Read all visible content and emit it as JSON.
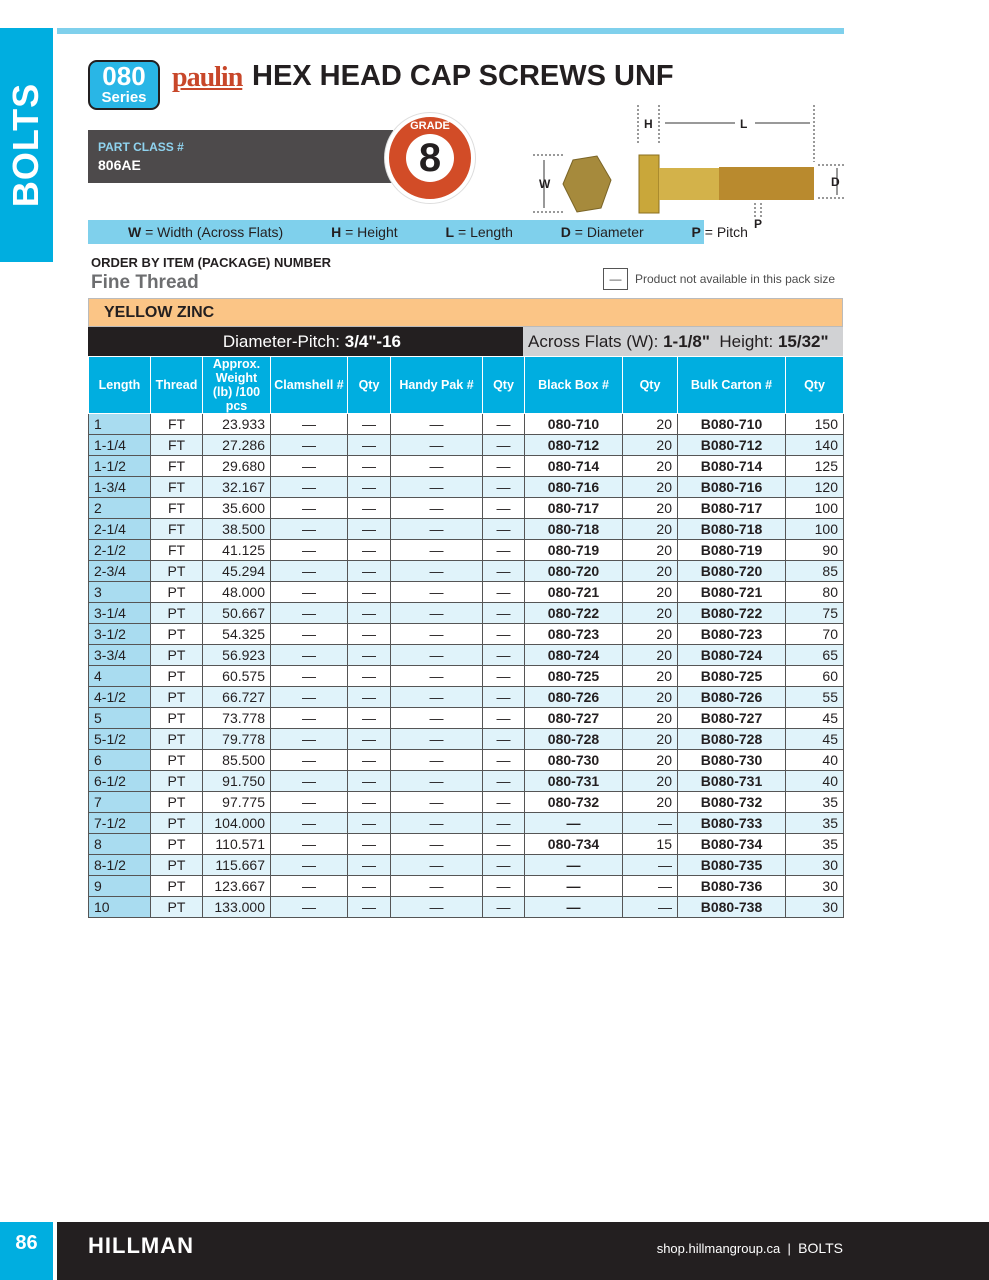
{
  "side_tab": "BOLTS",
  "header": {
    "series_number": "080",
    "series_label": "Series",
    "brand": "paulin",
    "title": "HEX HEAD CAP SCREWS UNF",
    "part_class_label": "PART CLASS #",
    "part_class": "806AE",
    "grade_label": "GRADE",
    "grade": "8"
  },
  "diagram": {
    "h": "H",
    "l": "L",
    "w": "W",
    "d": "D",
    "p": "P"
  },
  "legend": [
    {
      "k": "W",
      "v": "= Width (Across Flats)"
    },
    {
      "k": "H",
      "v": "= Height"
    },
    {
      "k": "L",
      "v": "= Length"
    },
    {
      "k": "D",
      "v": "= Diameter"
    },
    {
      "k": "P",
      "v": "= Pitch"
    }
  ],
  "order_by": "ORDER BY ITEM (PACKAGE) NUMBER",
  "thread_type": "Fine Thread",
  "not_available": {
    "symbol": "—",
    "text": "Product not available in this pack size"
  },
  "finish": "YELLOW ZINC",
  "spec": {
    "dp_label": "Diameter-Pitch:",
    "dp_value": "3/4\"-16",
    "af_label": "Across Flats (W):",
    "af_value": "1-1/8\"",
    "h_label": "Height:",
    "h_value": "15/32\""
  },
  "columns": [
    "Length",
    "Thread",
    "Approx. Weight (lb) /100 pcs",
    "Clamshell #",
    "Qty",
    "Handy Pak #",
    "Qty",
    "Black Box #",
    "Qty",
    "Bulk Carton #",
    "Qty"
  ],
  "rows": [
    [
      "1",
      "FT",
      "23.933",
      "—",
      "—",
      "—",
      "—",
      "080-710",
      "20",
      "B080-710",
      "150"
    ],
    [
      "1-1/4",
      "FT",
      "27.286",
      "—",
      "—",
      "—",
      "—",
      "080-712",
      "20",
      "B080-712",
      "140"
    ],
    [
      "1-1/2",
      "FT",
      "29.680",
      "—",
      "—",
      "—",
      "—",
      "080-714",
      "20",
      "B080-714",
      "125"
    ],
    [
      "1-3/4",
      "FT",
      "32.167",
      "—",
      "—",
      "—",
      "—",
      "080-716",
      "20",
      "B080-716",
      "120"
    ],
    [
      "2",
      "FT",
      "35.600",
      "—",
      "—",
      "—",
      "—",
      "080-717",
      "20",
      "B080-717",
      "100"
    ],
    [
      "2-1/4",
      "FT",
      "38.500",
      "—",
      "—",
      "—",
      "—",
      "080-718",
      "20",
      "B080-718",
      "100"
    ],
    [
      "2-1/2",
      "FT",
      "41.125",
      "—",
      "—",
      "—",
      "—",
      "080-719",
      "20",
      "B080-719",
      "90"
    ],
    [
      "2-3/4",
      "PT",
      "45.294",
      "—",
      "—",
      "—",
      "—",
      "080-720",
      "20",
      "B080-720",
      "85"
    ],
    [
      "3",
      "PT",
      "48.000",
      "—",
      "—",
      "—",
      "—",
      "080-721",
      "20",
      "B080-721",
      "80"
    ],
    [
      "3-1/4",
      "PT",
      "50.667",
      "—",
      "—",
      "—",
      "—",
      "080-722",
      "20",
      "B080-722",
      "75"
    ],
    [
      "3-1/2",
      "PT",
      "54.325",
      "—",
      "—",
      "—",
      "—",
      "080-723",
      "20",
      "B080-723",
      "70"
    ],
    [
      "3-3/4",
      "PT",
      "56.923",
      "—",
      "—",
      "—",
      "—",
      "080-724",
      "20",
      "B080-724",
      "65"
    ],
    [
      "4",
      "PT",
      "60.575",
      "—",
      "—",
      "—",
      "—",
      "080-725",
      "20",
      "B080-725",
      "60"
    ],
    [
      "4-1/2",
      "PT",
      "66.727",
      "—",
      "—",
      "—",
      "—",
      "080-726",
      "20",
      "B080-726",
      "55"
    ],
    [
      "5",
      "PT",
      "73.778",
      "—",
      "—",
      "—",
      "—",
      "080-727",
      "20",
      "B080-727",
      "45"
    ],
    [
      "5-1/2",
      "PT",
      "79.778",
      "—",
      "—",
      "—",
      "—",
      "080-728",
      "20",
      "B080-728",
      "45"
    ],
    [
      "6",
      "PT",
      "85.500",
      "—",
      "—",
      "—",
      "—",
      "080-730",
      "20",
      "B080-730",
      "40"
    ],
    [
      "6-1/2",
      "PT",
      "91.750",
      "—",
      "—",
      "—",
      "—",
      "080-731",
      "20",
      "B080-731",
      "40"
    ],
    [
      "7",
      "PT",
      "97.775",
      "—",
      "—",
      "—",
      "—",
      "080-732",
      "20",
      "B080-732",
      "35"
    ],
    [
      "7-1/2",
      "PT",
      "104.000",
      "—",
      "—",
      "—",
      "—",
      "—",
      "—",
      "B080-733",
      "35"
    ],
    [
      "8",
      "PT",
      "110.571",
      "—",
      "—",
      "—",
      "—",
      "080-734",
      "15",
      "B080-734",
      "35"
    ],
    [
      "8-1/2",
      "PT",
      "115.667",
      "—",
      "—",
      "—",
      "—",
      "—",
      "—",
      "B080-735",
      "30"
    ],
    [
      "9",
      "PT",
      "123.667",
      "—",
      "—",
      "—",
      "—",
      "—",
      "—",
      "B080-736",
      "30"
    ],
    [
      "10",
      "PT",
      "133.000",
      "—",
      "—",
      "—",
      "—",
      "—",
      "—",
      "B080-738",
      "30"
    ]
  ],
  "footer": {
    "page": "86",
    "logo": "HILLMAN",
    "url": "shop.hillmangroup.ca",
    "sep": "|",
    "section": "BOLTS"
  },
  "colors": {
    "cyan": "#00aee0",
    "orange": "#d24c27",
    "peach": "#fbc586",
    "dark": "#231f20"
  }
}
